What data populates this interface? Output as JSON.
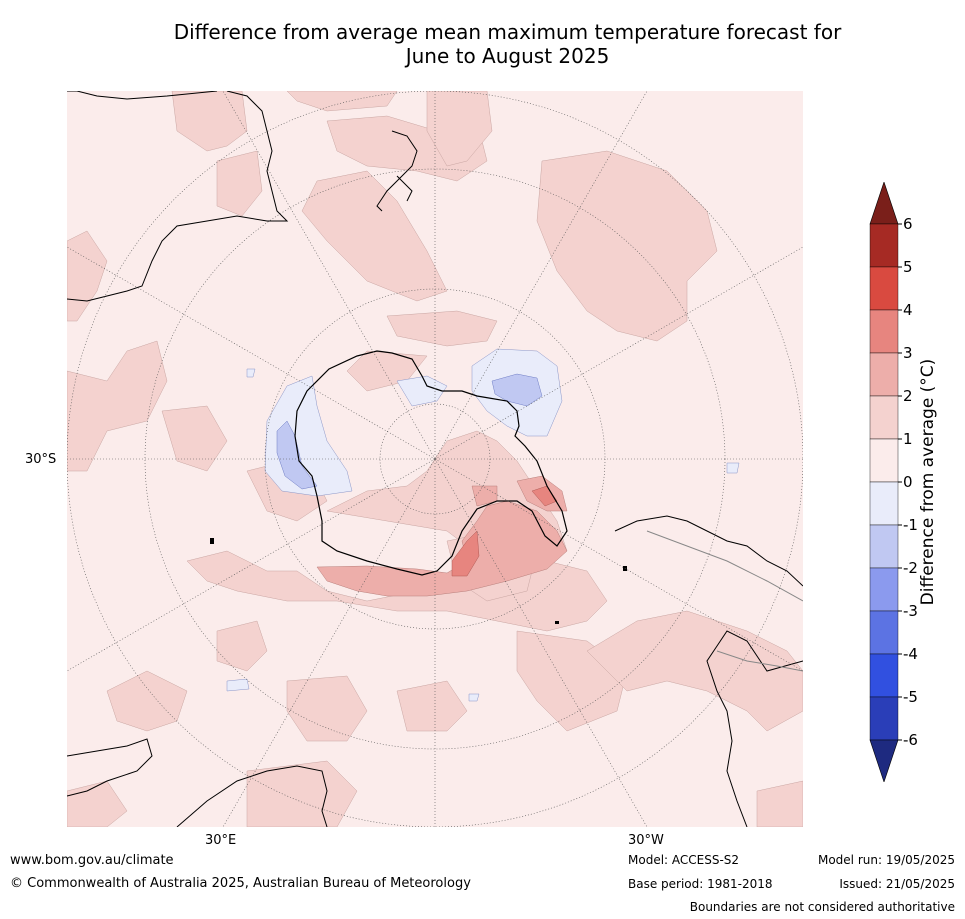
{
  "title": {
    "line1": "Difference from average mean maximum temperature forecast for",
    "line2": "June to August 2025"
  },
  "map": {
    "projection": "south-polar-stereographic",
    "lat_label": "30°S",
    "lon_labels": [
      "30°E",
      "30°W"
    ],
    "colors": {
      "bin_0_1": "#fbeceb",
      "bin_1_2": "#f4d2cf",
      "bin_2_3": "#edaeaa",
      "bin_3_4": "#e7857f",
      "bin_m1_0": "#e9ecfa",
      "bin_m2_m1": "#c0c8f2",
      "coast": "#000000",
      "grid": "#555555"
    }
  },
  "colorbar": {
    "label": "Difference from average (°C)",
    "ticks": [
      "6",
      "5",
      "4",
      "3",
      "2",
      "1",
      "0",
      "-1",
      "-2",
      "-3",
      "-4",
      "-5",
      "-6"
    ],
    "bins": [
      {
        "range": "5 to 6",
        "color": "#a62a24"
      },
      {
        "range": "4 to 5",
        "color": "#d94a40"
      },
      {
        "range": "3 to 4",
        "color": "#e7857f"
      },
      {
        "range": "2 to 3",
        "color": "#edaeaa"
      },
      {
        "range": "1 to 2",
        "color": "#f4d2cf"
      },
      {
        "range": "0 to 1",
        "color": "#fbeceb"
      },
      {
        "range": "-1 to 0",
        "color": "#e9ecfa"
      },
      {
        "range": "-2 to -1",
        "color": "#c0c8f2"
      },
      {
        "range": "-3 to -2",
        "color": "#8b9aee"
      },
      {
        "range": "-4 to -3",
        "color": "#5c73e3"
      },
      {
        "range": "-5 to -4",
        "color": "#3150e0"
      },
      {
        "range": "-6 to -5",
        "color": "#2a3eb8"
      }
    ],
    "over_color": "#7a1f1a",
    "under_color": "#1e2a80"
  },
  "footer": {
    "website": "www.bom.gov.au/climate",
    "copyright": "© Commonwealth of Australia 2025, Australian Bureau of Meteorology",
    "model": "Model: ACCESS-S2",
    "base_period": "Base period: 1981-2018",
    "model_run": "Model run: 19/05/2025",
    "issued": "Issued: 21/05/2025",
    "disclaimer": "Boundaries are not considered authoritative"
  }
}
